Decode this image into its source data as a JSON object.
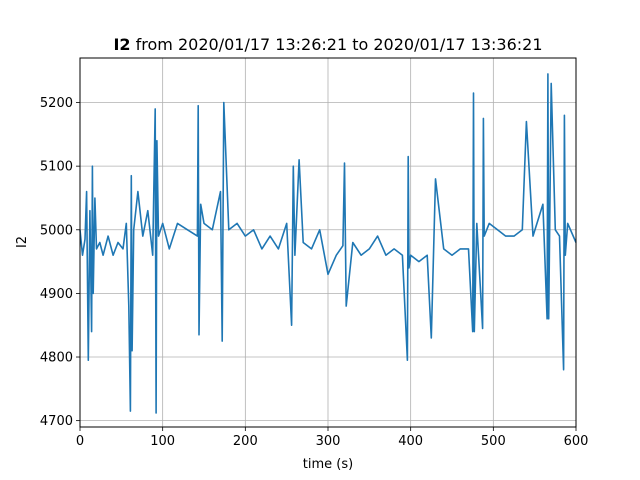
{
  "chart_data": {
    "type": "line",
    "title_var": "I2",
    "title_rest": " from 2020/01/17 13:26:21 to 2020/01/17 13:36:21",
    "xlabel": "time (s)",
    "ylabel": "I2",
    "xlim": [
      0,
      600
    ],
    "ylim": [
      4690,
      5270
    ],
    "xticks": [
      0,
      100,
      200,
      300,
      400,
      500,
      600
    ],
    "yticks": [
      4700,
      4800,
      4900,
      5000,
      5100,
      5200
    ],
    "grid": true,
    "line_color": "#1f77b4",
    "series": [
      {
        "x": [
          0,
          3,
          6,
          8,
          10,
          12,
          14,
          15,
          16,
          18,
          20,
          24,
          28,
          34,
          40,
          46,
          52,
          56,
          59,
          61,
          62,
          63,
          65,
          70,
          76,
          82,
          88,
          91,
          92,
          93,
          95,
          100,
          108,
          118,
          130,
          142,
          143,
          144,
          146,
          150,
          160,
          170,
          172,
          174,
          180,
          190,
          200,
          210,
          220,
          230,
          240,
          250,
          256,
          258,
          260,
          265,
          270,
          280,
          290,
          300,
          310,
          318,
          320,
          322,
          330,
          340,
          350,
          360,
          370,
          380,
          390,
          396,
          397,
          398,
          400,
          410,
          420,
          425,
          430,
          440,
          450,
          460,
          470,
          475,
          476,
          477,
          480,
          487,
          488,
          489,
          495,
          505,
          515,
          525,
          535,
          540,
          548,
          560,
          565,
          566,
          567,
          570,
          575,
          580,
          585,
          586,
          587,
          590,
          600
        ],
        "y": [
          5000,
          4960,
          4985,
          5060,
          4795,
          5030,
          4840,
          5100,
          4900,
          5050,
          4970,
          4980,
          4960,
          4990,
          4960,
          4980,
          4970,
          5010,
          4880,
          4715,
          5085,
          4810,
          5000,
          5060,
          4990,
          5030,
          4960,
          5190,
          4712,
          5140,
          4990,
          5010,
          4970,
          5010,
          5000,
          4990,
          5195,
          4835,
          5040,
          5010,
          5000,
          5060,
          4825,
          5200,
          5000,
          5010,
          4990,
          5000,
          4970,
          4990,
          4970,
          5010,
          4850,
          5100,
          4960,
          5110,
          4980,
          4970,
          5000,
          4930,
          4960,
          4975,
          5105,
          4880,
          4980,
          4960,
          4970,
          4990,
          4960,
          4970,
          4960,
          4795,
          5115,
          4940,
          4960,
          4950,
          4960,
          4830,
          5080,
          4970,
          4960,
          4970,
          4970,
          4840,
          5215,
          4840,
          5010,
          4845,
          5175,
          4990,
          5010,
          5000,
          4990,
          4990,
          5000,
          5170,
          4990,
          5040,
          4860,
          5245,
          4860,
          5230,
          5000,
          4990,
          4780,
          5180,
          4960,
          5010,
          4980
        ]
      }
    ]
  }
}
